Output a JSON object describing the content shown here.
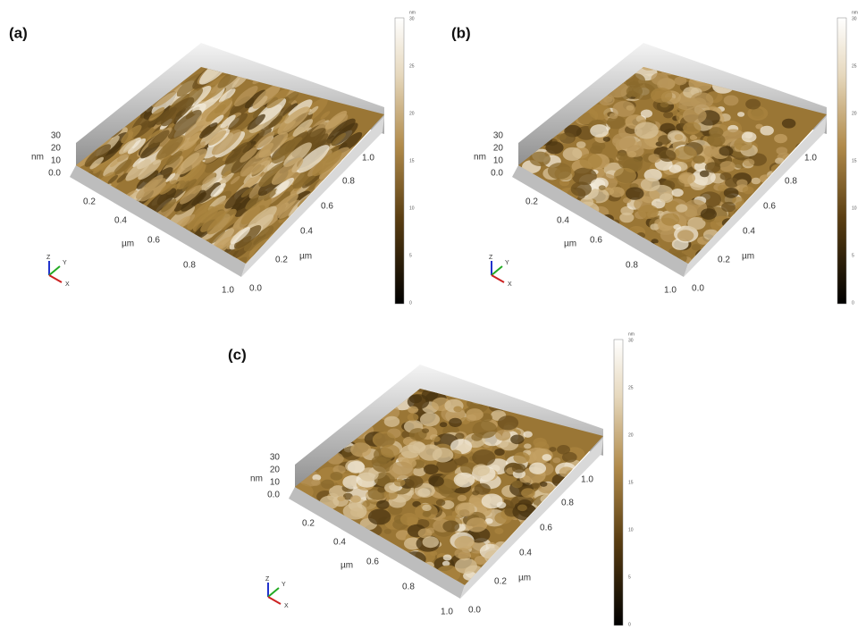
{
  "panels": [
    {
      "label": "(a)",
      "z_ticks": [
        "30",
        "20",
        "10",
        "0.0"
      ],
      "z_unit": "nm",
      "x_ticks": [
        "0.2",
        "0.4",
        "0.6",
        "0.8",
        "1.0"
      ],
      "x_unit": "µm",
      "y_ticks": [
        "0.0",
        "0.2",
        "0.4",
        "0.6",
        "0.8",
        "1.0"
      ],
      "y_unit": "µm",
      "axes": [
        "Z",
        "Y",
        "X"
      ],
      "colorbar": {
        "unit": "nm",
        "ticks": [
          "30",
          "25",
          "20",
          "15",
          "10",
          "5",
          "0"
        ]
      }
    },
    {
      "label": "(b)",
      "z_ticks": [
        "30",
        "20",
        "10",
        "0.0"
      ],
      "z_unit": "nm",
      "x_ticks": [
        "0.2",
        "0.4",
        "0.6",
        "0.8",
        "1.0"
      ],
      "x_unit": "µm",
      "y_ticks": [
        "0.0",
        "0.2",
        "0.4",
        "0.6",
        "0.8",
        "1.0"
      ],
      "y_unit": "µm",
      "axes": [
        "Z",
        "Y",
        "X"
      ],
      "colorbar": {
        "unit": "nm",
        "ticks": [
          "30",
          "25",
          "20",
          "15",
          "10",
          "5",
          "0"
        ]
      }
    },
    {
      "label": "(c)",
      "z_ticks": [
        "30",
        "20",
        "10",
        "0.0"
      ],
      "z_unit": "nm",
      "x_ticks": [
        "0.2",
        "0.4",
        "0.6",
        "0.8",
        "1.0"
      ],
      "x_unit": "µm",
      "y_ticks": [
        "0.0",
        "0.2",
        "0.4",
        "0.6",
        "0.8",
        "1.0"
      ],
      "y_unit": "µm",
      "axes": [
        "Z",
        "Y",
        "X"
      ],
      "colorbar": {
        "unit": "nm",
        "ticks": [
          "30",
          "25",
          "20",
          "15",
          "10",
          "5",
          "0"
        ]
      }
    }
  ]
}
